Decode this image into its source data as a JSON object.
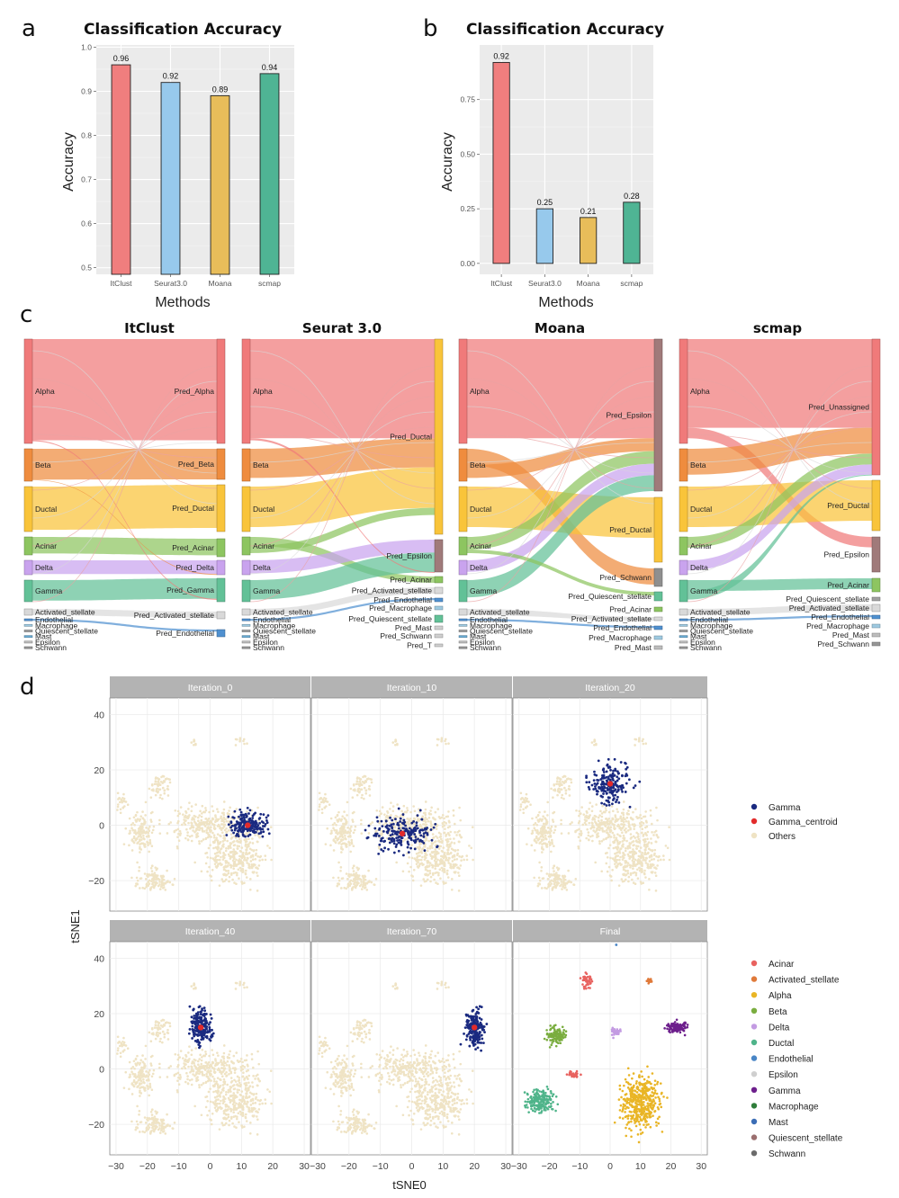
{
  "panels": {
    "a": "a",
    "b": "b",
    "c": "c",
    "d": "d"
  },
  "chart_data": [
    {
      "id": "a",
      "type": "bar",
      "title": "Classification Accuracy",
      "xlabel": "Methods",
      "ylabel": "Accuracy",
      "categories": [
        "ItClust",
        "Seurat3.0",
        "Moana",
        "scmap"
      ],
      "values": [
        0.96,
        0.92,
        0.89,
        0.94
      ],
      "value_labels": [
        "0.96",
        "0.92",
        "0.89",
        "0.94"
      ],
      "colors": [
        "#f07e7e",
        "#97c9ec",
        "#e8bd5a",
        "#4fb494"
      ],
      "yticks": [
        0.5,
        0.6,
        0.7,
        0.8,
        0.9,
        1.0
      ],
      "ytick_labels": [
        "0.5",
        "0.6",
        "0.7",
        "0.8",
        "0.9",
        "1.0"
      ],
      "ylim": [
        0.485,
        1.005
      ],
      "grid": true
    },
    {
      "id": "b",
      "type": "bar",
      "title": "Classification Accuracy",
      "xlabel": "Methods",
      "ylabel": "Accuracy",
      "categories": [
        "ItClust",
        "Seurat3.0",
        "Moana",
        "scmap"
      ],
      "values": [
        0.92,
        0.25,
        0.21,
        0.28
      ],
      "value_labels": [
        "0.92",
        "0.25",
        "0.21",
        "0.28"
      ],
      "colors": [
        "#f07e7e",
        "#97c9ec",
        "#e8bd5a",
        "#4fb494"
      ],
      "yticks": [
        0.0,
        0.25,
        0.5,
        0.75
      ],
      "ytick_labels": [
        "0.00",
        "0.25",
        "0.50",
        "0.75"
      ],
      "ylim": [
        -0.05,
        1.0
      ],
      "grid": true
    },
    {
      "id": "c",
      "type": "sankey",
      "diagrams": [
        {
          "title": "ItClust",
          "left": [
            "Alpha",
            "Beta",
            "Ductal",
            "Acinar",
            "Delta",
            "Gamma",
            "Activated_stellate",
            "Endothelial",
            "Macrophage",
            "Quiescent_stellate",
            "Mast",
            "Epsilon",
            "Schwann"
          ],
          "right": [
            "Pred_Alpha",
            "Pred_Beta",
            "Pred_Ductal",
            "Pred_Acinar",
            "Pred_Delta",
            "Pred_Gamma",
            "Pred_Activated_stellate",
            "Pred_Endothelial"
          ]
        },
        {
          "title": "Seurat 3.0",
          "left": [
            "Alpha",
            "Beta",
            "Ductal",
            "Acinar",
            "Delta",
            "Gamma",
            "Activated_stellate",
            "Endothelial",
            "Macrophage",
            "Quiescent_stellate",
            "Mast",
            "Epsilon",
            "Schwann"
          ],
          "right": [
            "Pred_Ductal",
            "Pred_Epsilon",
            "Pred_Acinar",
            "Pred_Activated_stellate",
            "Pred_Endothelial",
            "Pred_Macrophage",
            "Pred_Quiescent_stellate",
            "Pred_Mast",
            "Pred_Schwann",
            "Pred_T"
          ]
        },
        {
          "title": "Moana",
          "left": [
            "Alpha",
            "Beta",
            "Ductal",
            "Acinar",
            "Delta",
            "Gamma",
            "Activated_stellate",
            "Endothelial",
            "Macrophage",
            "Quiescent_stellate",
            "Mast",
            "Epsilon",
            "Schwann"
          ],
          "right": [
            "Pred_Epsilon",
            "Pred_Ductal",
            "Pred_Schwann",
            "Pred_Quiescent_stellate",
            "Pred_Acinar",
            "Pred_Activated_stellate",
            "Pred_Endothelial",
            "Pred_Macrophage",
            "Pred_Mast"
          ]
        },
        {
          "title": "scmap",
          "left": [
            "Alpha",
            "Beta",
            "Ductal",
            "Acinar",
            "Delta",
            "Gamma",
            "Activated_stellate",
            "Endothelial",
            "Macrophage",
            "Quiescent_stellate",
            "Mast",
            "Epsilon",
            "Schwann"
          ],
          "right": [
            "Pred_Unassigned",
            "Pred_Ductal",
            "Pred_Epsilon",
            "Pred_Acinar",
            "Pred_Quiescent_stellate",
            "Pred_Activated_stellate",
            "Pred_Endothelial",
            "Pred_Macrophage",
            "Pred_Mast",
            "Pred_Schwann"
          ]
        }
      ]
    },
    {
      "id": "d",
      "type": "scatter",
      "xlabel": "tSNE0",
      "ylabel": "tSNE1",
      "xlim": [
        -32,
        32
      ],
      "ylim": [
        -31,
        46
      ],
      "xticks": [
        -30,
        -20,
        -10,
        0,
        10,
        20,
        30
      ],
      "xtick_labels": [
        "−30",
        "−20",
        "−10",
        "0",
        "10",
        "20",
        "30"
      ],
      "yticks": [
        -20,
        0,
        20,
        40
      ],
      "ytick_labels": [
        "−20",
        "0",
        "20",
        "40"
      ],
      "facets": [
        {
          "label": "Iteration_0",
          "centroid": [
            12,
            0
          ]
        },
        {
          "label": "Iteration_10",
          "centroid": [
            -3,
            -3
          ]
        },
        {
          "label": "Iteration_20",
          "centroid": [
            0,
            15
          ]
        },
        {
          "label": "Iteration_40",
          "centroid": [
            -3,
            15
          ]
        },
        {
          "label": "Iteration_70",
          "centroid": [
            20,
            15
          ]
        },
        {
          "label": "Final",
          "centroid": null
        }
      ],
      "legend_top": [
        {
          "label": "Gamma",
          "color": "#1a2a80"
        },
        {
          "label": "Gamma_centroid",
          "color": "#e22b2b"
        },
        {
          "label": "Others",
          "color": "#efe3c4"
        }
      ],
      "legend_bottom": [
        {
          "label": "Acinar",
          "color": "#e8625f"
        },
        {
          "label": "Activated_stellate",
          "color": "#e07a3a"
        },
        {
          "label": "Alpha",
          "color": "#e9b526"
        },
        {
          "label": "Beta",
          "color": "#7aad3f"
        },
        {
          "label": "Delta",
          "color": "#c39be2"
        },
        {
          "label": "Ductal",
          "color": "#4fb48a"
        },
        {
          "label": "Endothelial",
          "color": "#4a86c6"
        },
        {
          "label": "Epsilon",
          "color": "#cfcfcf"
        },
        {
          "label": "Gamma",
          "color": "#6d1f8c"
        },
        {
          "label": "Macrophage",
          "color": "#2f7d3a"
        },
        {
          "label": "Mast",
          "color": "#3b6db5"
        },
        {
          "label": "Quiescent_stellate",
          "color": "#9b6f6f"
        },
        {
          "label": "Schwann",
          "color": "#6b6b6b"
        }
      ]
    }
  ]
}
